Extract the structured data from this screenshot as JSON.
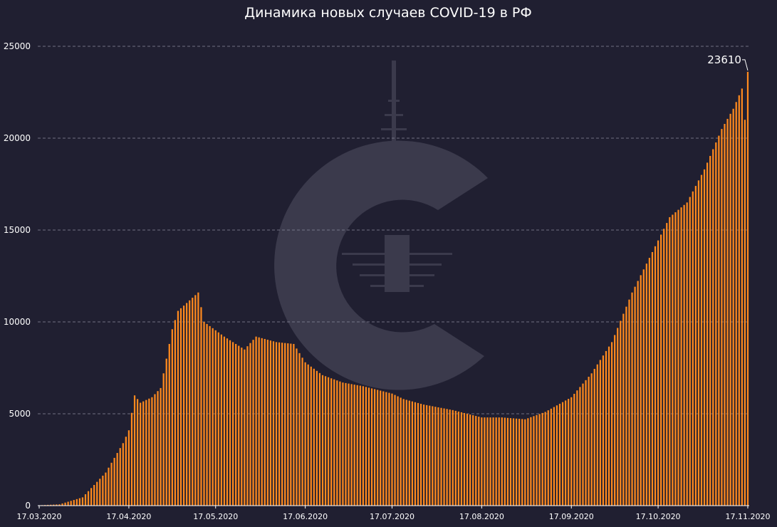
{
  "chart_data": {
    "type": "bar",
    "title": "Динамика новых случаев COVID-19 в РФ",
    "ylim": [
      0,
      25000
    ],
    "yticks": [
      "0",
      "5000",
      "10000",
      "15000",
      "20000",
      "25000"
    ],
    "grid": true,
    "bar_color": "#ff8a1e",
    "background_color": "#201f31",
    "x_start_date": "17.03.2020",
    "x_tick_labels": [
      "17.03.2020",
      "17.04.2020",
      "17.05.2020",
      "17.06.2020",
      "17.07.2020",
      "17.08.2020",
      "17.09.2020",
      "17.10.2020",
      "17.11.2020"
    ],
    "peak_label": "23610",
    "anchors": [
      [
        "17.03.2020",
        20
      ],
      [
        "24.03.2020",
        70
      ],
      [
        "01.04.2020",
        450
      ],
      [
        "09.04.2020",
        1800
      ],
      [
        "15.04.2020",
        3400
      ],
      [
        "17.04.2020",
        4100
      ],
      [
        "19.04.2020",
        6000
      ],
      [
        "21.04.2020",
        5600
      ],
      [
        "25.04.2020",
        5900
      ],
      [
        "28.04.2020",
        6400
      ],
      [
        "02.05.2020",
        9600
      ],
      [
        "04.05.2020",
        10600
      ],
      [
        "11.05.2020",
        11600
      ],
      [
        "13.05.2020",
        10000
      ],
      [
        "20.05.2020",
        9200
      ],
      [
        "27.05.2020",
        8500
      ],
      [
        "31.05.2020",
        9200
      ],
      [
        "07.06.2020",
        8900
      ],
      [
        "13.06.2020",
        8800
      ],
      [
        "17.06.2020",
        7800
      ],
      [
        "23.06.2020",
        7100
      ],
      [
        "30.06.2020",
        6700
      ],
      [
        "07.07.2020",
        6500
      ],
      [
        "17.07.2020",
        6100
      ],
      [
        "21.07.2020",
        5800
      ],
      [
        "28.07.2020",
        5500
      ],
      [
        "07.08.2020",
        5200
      ],
      [
        "17.08.2020",
        4800
      ],
      [
        "24.08.2020",
        4800
      ],
      [
        "01.09.2020",
        4700
      ],
      [
        "08.09.2020",
        5100
      ],
      [
        "17.09.2020",
        5900
      ],
      [
        "24.09.2020",
        7200
      ],
      [
        "01.10.2020",
        8900
      ],
      [
        "08.10.2020",
        11600
      ],
      [
        "15.10.2020",
        13800
      ],
      [
        "21.10.2020",
        15700
      ],
      [
        "27.10.2020",
        16500
      ],
      [
        "02.11.2020",
        18300
      ],
      [
        "08.11.2020",
        20500
      ],
      [
        "12.11.2020",
        21600
      ],
      [
        "15.11.2020",
        22700
      ],
      [
        "16.11.2020",
        21000
      ],
      [
        "17.11.2020",
        23610
      ]
    ]
  }
}
